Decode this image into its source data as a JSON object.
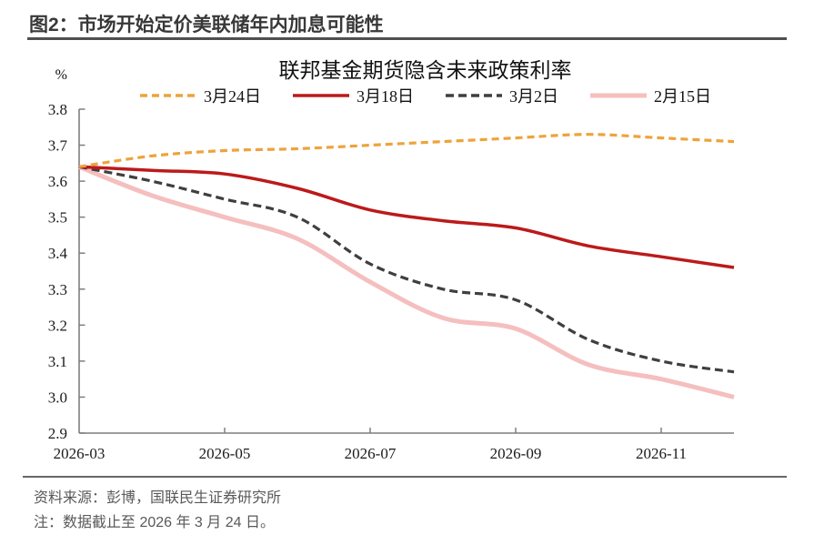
{
  "figure": {
    "header_title": "图2：市场开始定价美联储年内加息可能性",
    "source_note": "资料来源：彭博，国联民生证券研究所",
    "data_note": "注：数据截止至 2026 年 3 月 24 日。"
  },
  "chart_data": {
    "type": "line",
    "title": "联邦基金期货隐含未来政策利率",
    "unit_label": "%",
    "x": [
      "2026-03",
      "2026-04",
      "2026-05",
      "2026-06",
      "2026-07",
      "2026-08",
      "2026-09",
      "2026-10",
      "2026-11",
      "2026-12"
    ],
    "x_tick_labels": [
      "2026-03",
      "2026-05",
      "2026-07",
      "2026-09",
      "2026-11"
    ],
    "ylim": [
      2.9,
      3.8
    ],
    "y_tick_step": 0.1,
    "grid": false,
    "legend_position": "top-center",
    "axis_color": "#7f7f7f",
    "tick_label_color": "#1a1a1a",
    "series": [
      {
        "name": "3月24日",
        "color": "#EDA33B",
        "dash": "8 5",
        "width": 3.2,
        "values": [
          3.64,
          3.67,
          3.685,
          3.69,
          3.7,
          3.71,
          3.72,
          3.73,
          3.72,
          3.71
        ]
      },
      {
        "name": "3月18日",
        "color": "#BC1A1A",
        "dash": null,
        "width": 3.5,
        "values": [
          3.64,
          3.63,
          3.62,
          3.58,
          3.52,
          3.49,
          3.47,
          3.42,
          3.39,
          3.36
        ]
      },
      {
        "name": "3月2日",
        "color": "#3F3F3F",
        "dash": "9 5",
        "width": 3.2,
        "values": [
          3.64,
          3.6,
          3.55,
          3.5,
          3.37,
          3.3,
          3.27,
          3.16,
          3.1,
          3.07
        ]
      },
      {
        "name": "2月15日",
        "color": "#F5BFBF",
        "dash": null,
        "width": 5,
        "values": [
          3.64,
          3.56,
          3.5,
          3.44,
          3.32,
          3.22,
          3.19,
          3.09,
          3.05,
          3.0
        ]
      }
    ]
  }
}
